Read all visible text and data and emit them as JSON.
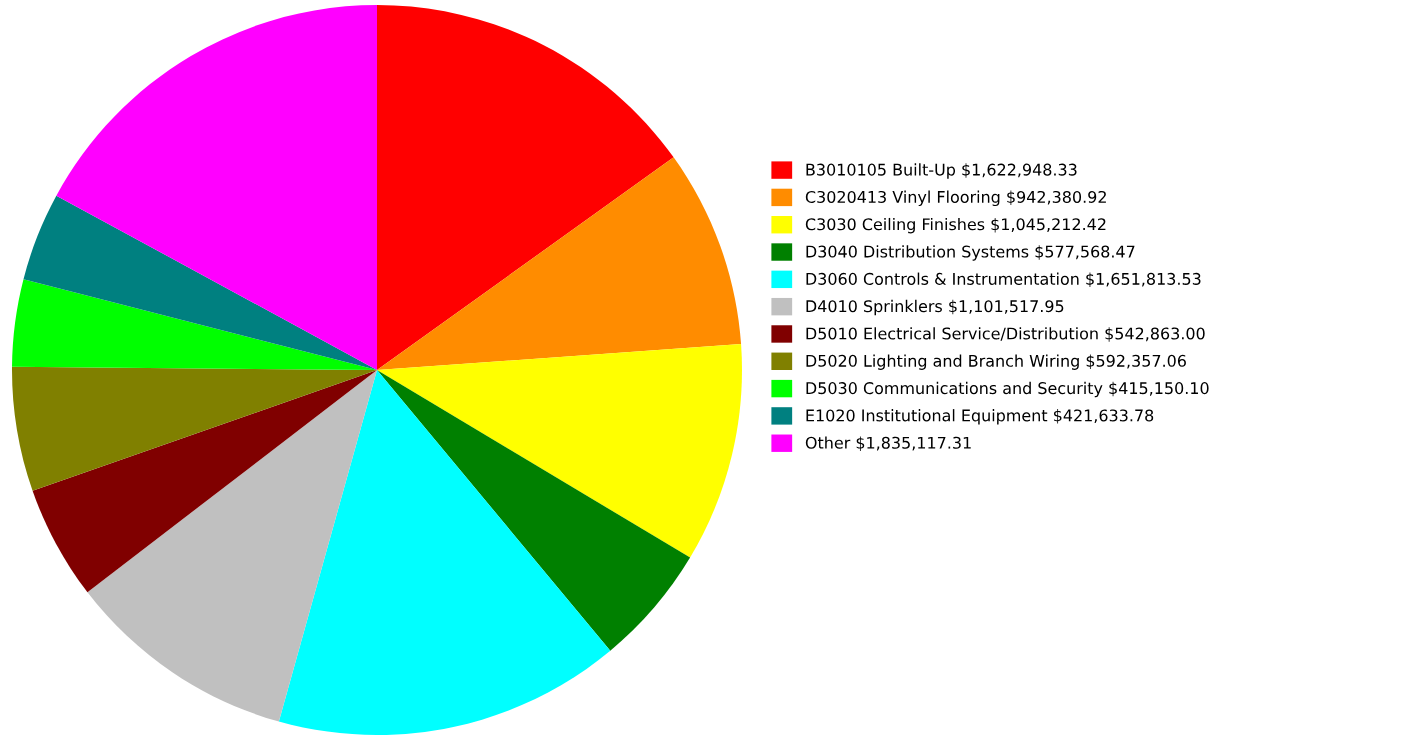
{
  "chart_data": {
    "type": "pie",
    "categories": [
      "B3010105 Built-Up",
      "C3020413 Vinyl Flooring",
      "C3030 Ceiling Finishes",
      "D3040 Distribution Systems",
      "D3060 Controls & Instrumentation",
      "D4010 Sprinklers",
      "D5010 Electrical Service/Distribution",
      "D5020 Lighting and Branch Wiring",
      "D5030 Communications and Security",
      "E1020 Institutional Equipment",
      "Other"
    ],
    "values": [
      1622948.33,
      942380.92,
      1045212.42,
      577568.47,
      1651813.53,
      1101517.95,
      542863.0,
      592357.06,
      415150.1,
      421633.78,
      1835117.31
    ],
    "value_labels": [
      "$1,622,948.33",
      "$942,380.92",
      "$1,045,212.42",
      "$577,568.47",
      "$1,651,813.53",
      "$1,101,517.95",
      "$542,863.00",
      "$592,357.06",
      "$415,150.10",
      "$421,633.78",
      "$1,835,117.31"
    ],
    "colors": [
      "#ff0000",
      "#ff8c00",
      "#ffff00",
      "#008000",
      "#00ffff",
      "#c0c0c0",
      "#800000",
      "#808000",
      "#00ff00",
      "#008080",
      "#ff00ff"
    ],
    "legend": "right"
  }
}
